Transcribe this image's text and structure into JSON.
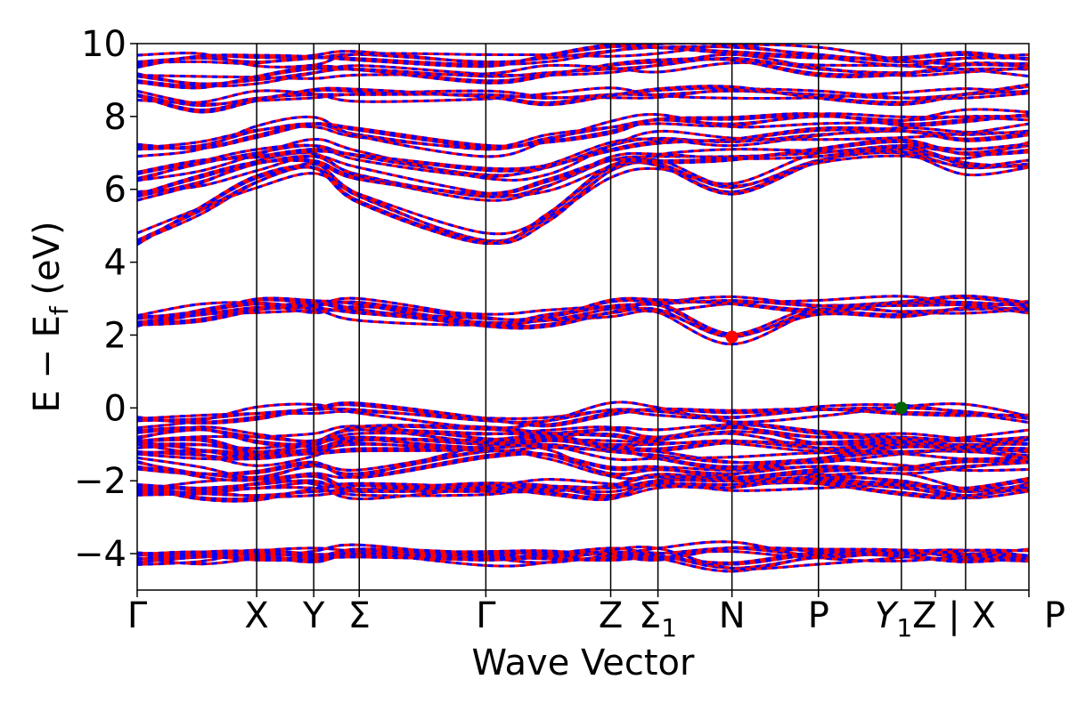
{
  "chart_data": {
    "type": "line",
    "xlabel": "Wave Vector",
    "ylabel": "E − E_f (eV)",
    "ylabel_parts": {
      "prefix": "E − E",
      "sub": "f",
      "suffix": " (eV)"
    },
    "ylim": [
      -5,
      10
    ],
    "yticks": [
      -4,
      -2,
      0,
      2,
      4,
      6,
      8,
      10
    ],
    "ytick_labels": [
      "−4",
      "−2",
      "0",
      "2",
      "4",
      "6",
      "8",
      "10"
    ],
    "kpath_x": [
      0,
      0.134,
      0.198,
      0.249,
      0.391,
      0.531,
      0.584,
      0.667,
      0.764,
      0.857,
      0.929,
      1.0
    ],
    "kpath_labels": [
      {
        "text": "Γ"
      },
      {
        "text": "X"
      },
      {
        "text": "Y"
      },
      {
        "text": "Σ"
      },
      {
        "text": "Γ"
      },
      {
        "text": "Z"
      },
      {
        "text": "Σ",
        "sub": "1"
      },
      {
        "text": "N"
      },
      {
        "text": "P"
      },
      {
        "text": "Y",
        "sub": "1",
        "italic": true,
        "suffix": "Z | X"
      },
      {
        "text": "P"
      }
    ],
    "series_colors": {
      "spin_up": "#ff0000",
      "spin_down": "#0000ff"
    },
    "style": "solid red lines overlaid with dashed blue lines",
    "grid": false,
    "bands": [
      {
        "y": [
          -4.15,
          -4.1,
          -4.0,
          -4.05,
          -3.95,
          -4.1,
          -4.05,
          -3.95,
          -4.0,
          -3.85,
          -4.05,
          -4.0,
          -4.0,
          -4.05
        ]
      },
      {
        "y": [
          -4.15,
          -4.05,
          -4.0,
          -4.05,
          -4.0,
          -4.15,
          -4.1,
          -4.0,
          -4.05,
          -4.4,
          -4.1,
          -4.0,
          -4.05,
          -4.1
        ]
      },
      {
        "y": [
          -2.2,
          -2.35,
          -2.4,
          -2.3,
          -2.25,
          -2.2,
          -2.2,
          -2.4,
          -2.1,
          -2.1,
          -2.05,
          -2.2,
          -2.4,
          -2.2
        ]
      },
      {
        "y": [
          -2.2,
          -2.2,
          -2.1,
          -2.0,
          -2.3,
          -2.15,
          -2.15,
          -2.2,
          -2.0,
          -2.0,
          -1.9,
          -2.0,
          -2.3,
          -2.1
        ]
      },
      {
        "y": [
          -1.5,
          -1.8,
          -1.9,
          -1.6,
          -1.8,
          -1.2,
          -1.3,
          -1.8,
          -1.7,
          -1.8,
          -1.6,
          -1.7,
          -1.6,
          -1.5
        ]
      },
      {
        "y": [
          -1.2,
          -1.3,
          -1.4,
          -1.2,
          -1.0,
          -1.1,
          -1.0,
          -1.2,
          -1.3,
          -1.5,
          -1.4,
          -1.2,
          -1.2,
          -1.3
        ]
      },
      {
        "y": [
          -1.0,
          -1.0,
          -1.2,
          -1.0,
          -0.8,
          -1.0,
          -0.9,
          -1.0,
          -1.0,
          -0.9,
          -1.1,
          -1.0,
          -1.0,
          -1.0
        ]
      },
      {
        "y": [
          -0.8,
          -0.6,
          -0.8,
          -0.9,
          -0.6,
          -0.7,
          -0.7,
          -0.6,
          -0.8,
          -0.55,
          -0.8,
          -0.8,
          -0.9,
          -0.8
        ]
      },
      {
        "y": [
          -0.35,
          -0.3,
          -0.15,
          -0.05,
          -0.05,
          -0.35,
          -0.35,
          -0.05,
          -0.1,
          -0.25,
          -0.05,
          -0.0,
          -0.1,
          -0.3
        ]
      },
      {
        "y": [
          2.35,
          2.55,
          2.7,
          2.75,
          2.6,
          2.35,
          2.4,
          2.6,
          2.7,
          1.95,
          2.7,
          2.65,
          2.7,
          2.75
        ]
      },
      {
        "y": [
          2.45,
          2.65,
          2.85,
          2.8,
          2.9,
          2.45,
          2.5,
          2.8,
          2.85,
          2.95,
          2.8,
          2.9,
          2.9,
          2.8
        ]
      },
      {
        "y": [
          4.6,
          5.4,
          6.2,
          6.6,
          5.8,
          4.6,
          5.2,
          6.5,
          6.7,
          6.05,
          6.8,
          7.0,
          6.6,
          6.7
        ]
      },
      {
        "y": [
          5.8,
          6.2,
          6.7,
          6.9,
          6.4,
          5.8,
          6.1,
          6.8,
          6.9,
          6.9,
          7.0,
          7.2,
          7.0,
          7.2
        ]
      },
      {
        "y": [
          6.3,
          6.7,
          7.0,
          7.2,
          6.9,
          6.4,
          6.6,
          7.2,
          7.4,
          7.3,
          7.5,
          7.6,
          7.5,
          7.6
        ]
      },
      {
        "y": [
          7.1,
          7.2,
          7.6,
          7.8,
          7.5,
          7.1,
          7.4,
          7.7,
          7.9,
          7.8,
          8.0,
          7.9,
          8.0,
          8.0
        ]
      },
      {
        "y": [
          8.6,
          8.3,
          8.5,
          8.6,
          8.6,
          8.6,
          8.5,
          8.6,
          8.6,
          8.7,
          8.6,
          8.5,
          8.6,
          8.7
        ]
      },
      {
        "y": [
          9.1,
          8.9,
          9.0,
          9.2,
          9.3,
          9.1,
          9.2,
          9.3,
          9.4,
          9.6,
          9.3,
          9.2,
          9.3,
          9.3
        ]
      },
      {
        "y": [
          9.5,
          9.6,
          9.5,
          9.6,
          9.7,
          9.5,
          9.6,
          9.8,
          9.9,
          9.9,
          9.7,
          9.5,
          9.6,
          9.6
        ]
      }
    ],
    "band_x": [
      0,
      0.07,
      0.134,
      0.198,
      0.249,
      0.391,
      0.46,
      0.531,
      0.584,
      0.667,
      0.764,
      0.857,
      0.929,
      1.0
    ],
    "markers": [
      {
        "name": "cbm-marker",
        "x": 0.667,
        "y": 1.95,
        "color": "#ff0000"
      },
      {
        "name": "vbm-marker",
        "x": 0.857,
        "y": 0.0,
        "color": "#006400"
      }
    ]
  }
}
